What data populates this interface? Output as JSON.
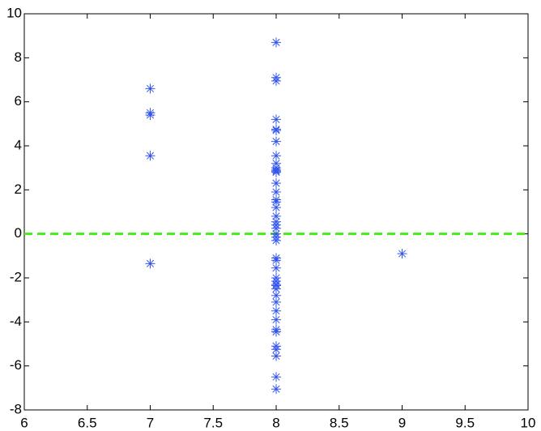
{
  "chart_data": {
    "type": "scatter",
    "x": [
      7,
      7,
      7,
      7,
      7,
      9,
      8,
      8,
      8,
      8,
      8,
      8,
      8,
      8,
      8,
      8,
      8,
      8,
      8,
      8,
      8,
      8,
      8,
      8,
      8,
      8,
      8,
      8,
      8,
      8,
      8,
      8,
      8,
      8,
      8,
      8,
      8,
      8,
      8,
      8,
      8,
      8,
      8,
      8,
      8,
      8,
      8,
      8,
      8,
      8
    ],
    "y": [
      6.6,
      5.5,
      5.4,
      3.55,
      -1.35,
      -0.9,
      8.7,
      7.1,
      6.95,
      5.2,
      4.75,
      4.7,
      4.2,
      3.55,
      3.2,
      3.0,
      2.9,
      2.85,
      2.8,
      2.3,
      1.9,
      1.55,
      1.45,
      1.2,
      0.8,
      0.55,
      0.4,
      0.25,
      0,
      -0.15,
      -0.3,
      -1.1,
      -1.2,
      -1.55,
      -2.0,
      -2.15,
      -2.3,
      -2.35,
      -2.5,
      -2.8,
      -3.1,
      -3.5,
      -3.9,
      -4.35,
      -4.45,
      -5.1,
      -5.25,
      -5.55,
      -6.5,
      -7.05
    ],
    "color": "#3355ee",
    "hline": 0,
    "hline_color": "#44ee11",
    "xlim": [
      6,
      10
    ],
    "xticks": [
      6,
      6.5,
      7,
      7.5,
      8,
      8.5,
      9,
      9.5,
      10
    ],
    "ylim": [
      -8,
      10
    ],
    "yticks": [
      -8,
      -6,
      -4,
      -2,
      0,
      2,
      4,
      6,
      8,
      10
    ],
    "grid": false
  }
}
